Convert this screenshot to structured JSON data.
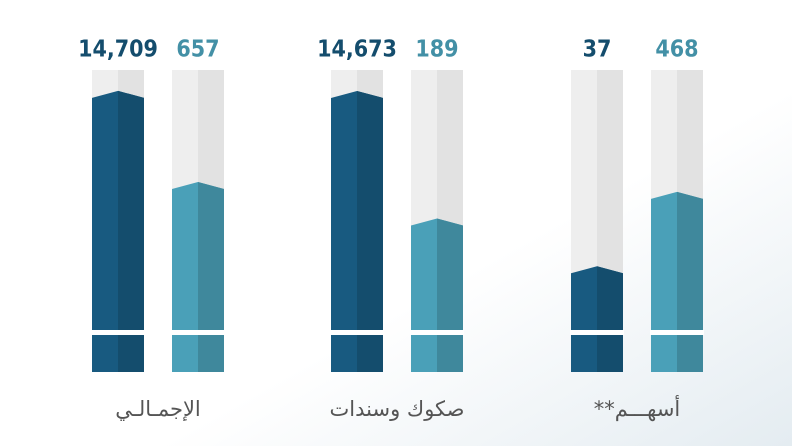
{
  "chart_data": {
    "type": "bar",
    "log_scale": true,
    "ylim": [
      1,
      30000
    ],
    "categories": [
      "الإجمـالـي",
      "صكوك وسندات",
      "أسهـــم**"
    ],
    "series": [
      {
        "color": "#185a80",
        "values": [
          14709,
          14673,
          37
        ],
        "value_labels": [
          "14,709",
          "14,673",
          "37"
        ]
      },
      {
        "color": "#4aa0b8",
        "values": [
          657,
          189,
          468
        ],
        "value_labels": [
          "657",
          "189",
          "468"
        ]
      }
    ]
  }
}
